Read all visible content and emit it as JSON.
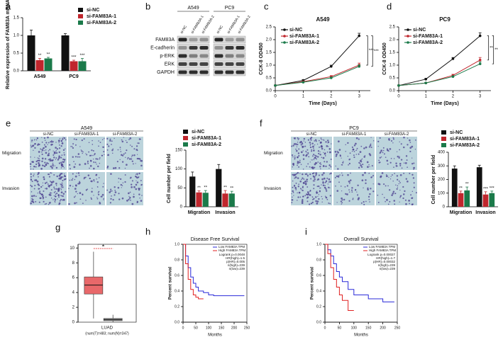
{
  "chart_data": [
    {
      "type": "bar",
      "label": "a",
      "ylabel": "Relative expression of FAM83A mRNA",
      "categories": [
        "A549",
        "PC9"
      ],
      "ylim": [
        0,
        1.5
      ],
      "yticks": [
        {
          "value": 0,
          "label": "0.0"
        },
        {
          "value": 0.5,
          "label": "0.5"
        },
        {
          "value": 1,
          "label": "1.0"
        },
        {
          "value": 1.5,
          "label": "1.5"
        }
      ],
      "series": [
        {
          "name": "si-NC",
          "color": "#111111",
          "values": [
            1.0,
            1.0
          ],
          "errors": [
            0.15,
            0.05
          ],
          "annotations": [
            null,
            null
          ]
        },
        {
          "name": "si-FAM83A-1",
          "color": "#c0262d",
          "values": [
            0.3,
            0.27
          ],
          "errors": [
            0.05,
            0.03
          ],
          "annotations": [
            "**",
            "***"
          ]
        },
        {
          "name": "si-FAM83A-2",
          "color": "#1b7a4a",
          "values": [
            0.35,
            0.27
          ],
          "errors": [
            0.03,
            0.08
          ],
          "annotations": [
            "**",
            "***"
          ]
        }
      ]
    },
    {
      "type": "line",
      "label": "c",
      "title": "A549",
      "xlabel": "Time (Days)",
      "ylabel": "CCK-8 OD450",
      "x": [
        0,
        1,
        2,
        3
      ],
      "xlim": [
        0,
        3.4
      ],
      "xticks": [
        0,
        1,
        2,
        3
      ],
      "ylim": [
        0,
        2.5
      ],
      "yticks": [
        {
          "value": 0,
          "label": "0.0"
        },
        {
          "value": 0.5,
          "label": "0.5"
        },
        {
          "value": 1,
          "label": "1.0"
        },
        {
          "value": 1.5,
          "label": "1.5"
        },
        {
          "value": 2,
          "label": "2.0"
        },
        {
          "value": 2.5,
          "label": "2.5"
        }
      ],
      "series": [
        {
          "name": "si-NC",
          "color": "#111111",
          "values": [
            0.2,
            0.4,
            0.95,
            2.15
          ],
          "errors": [
            0.02,
            0.03,
            0.05,
            0.1
          ]
        },
        {
          "name": "si-FAM83A-1",
          "color": "#c0262d",
          "values": [
            0.2,
            0.35,
            0.55,
            1.0
          ],
          "errors": [
            0.02,
            0.02,
            0.04,
            0.08
          ],
          "annotation": "***"
        },
        {
          "name": "si-FAM83A-2",
          "color": "#1b7a4a",
          "values": [
            0.2,
            0.33,
            0.5,
            0.95
          ],
          "errors": [
            0.02,
            0.02,
            0.03,
            0.06
          ],
          "annotation": "***"
        }
      ]
    },
    {
      "type": "line",
      "label": "d",
      "title": "PC9",
      "xlabel": "Time (Days)",
      "ylabel": "CCK-8 OD450",
      "x": [
        0,
        1,
        2,
        3
      ],
      "xlim": [
        0,
        3.4
      ],
      "xticks": [
        0,
        1,
        2,
        3
      ],
      "ylim": [
        0,
        2.5
      ],
      "yticks": [
        {
          "value": 0,
          "label": "0.0"
        },
        {
          "value": 0.5,
          "label": "0.5"
        },
        {
          "value": 1,
          "label": "1.0"
        },
        {
          "value": 1.5,
          "label": "1.5"
        },
        {
          "value": 2,
          "label": "2.0"
        },
        {
          "value": 2.5,
          "label": "2.5"
        }
      ],
      "series": [
        {
          "name": "si-NC",
          "color": "#111111",
          "values": [
            0.2,
            0.45,
            1.25,
            2.15
          ],
          "errors": [
            0.02,
            0.03,
            0.05,
            0.12
          ]
        },
        {
          "name": "si-FAM83A-1",
          "color": "#c0262d",
          "values": [
            0.2,
            0.3,
            0.6,
            1.2
          ],
          "errors": [
            0.02,
            0.02,
            0.04,
            0.1
          ],
          "annotation": "**"
        },
        {
          "name": "si-FAM83A-2",
          "color": "#1b7a4a",
          "values": [
            0.2,
            0.3,
            0.55,
            1.05
          ],
          "errors": [
            0.02,
            0.02,
            0.03,
            0.08
          ],
          "annotation": "**"
        }
      ]
    },
    {
      "type": "bar",
      "label": "e",
      "ylabel": "Cell number per field",
      "categories": [
        "Migration",
        "Invasion"
      ],
      "ylim": [
        0,
        150
      ],
      "yticks": [
        0,
        50,
        100,
        150
      ],
      "series": [
        {
          "name": "si-NC",
          "color": "#111111",
          "values": [
            80,
            100
          ],
          "errors": [
            12,
            12
          ],
          "annotations": [
            null,
            null
          ]
        },
        {
          "name": "si-FAM83A-1",
          "color": "#c0262d",
          "values": [
            38,
            35
          ],
          "errors": [
            4,
            8
          ],
          "annotations": [
            "**",
            "**"
          ]
        },
        {
          "name": "si-FAM83A-2",
          "color": "#1b7a4a",
          "values": [
            37,
            35
          ],
          "errors": [
            6,
            6
          ],
          "annotations": [
            "**",
            "**"
          ]
        }
      ]
    },
    {
      "type": "bar",
      "label": "f",
      "ylabel": "Cell number per field",
      "categories": [
        "Migration",
        "Invasion"
      ],
      "ylim": [
        0,
        400
      ],
      "yticks": [
        0,
        100,
        200,
        300,
        400
      ],
      "series": [
        {
          "name": "si-NC",
          "color": "#111111",
          "values": [
            280,
            290
          ],
          "errors": [
            20,
            15
          ],
          "annotations": [
            null,
            null
          ]
        },
        {
          "name": "si-FAM83A-1",
          "color": "#c0262d",
          "values": [
            100,
            90
          ],
          "errors": [
            15,
            20
          ],
          "annotations": [
            "**",
            "***"
          ]
        },
        {
          "name": "si-FAM83A-2",
          "color": "#1b7a4a",
          "values": [
            120,
            100
          ],
          "errors": [
            25,
            15
          ],
          "annotations": [
            "**",
            "***"
          ]
        }
      ]
    },
    {
      "type": "box",
      "label": "g",
      "xlabel": "LUAD",
      "subtitle": "(num(T)=483; num(N)=347)",
      "annotation": "*",
      "ylim": [
        0,
        10.5
      ],
      "yticks": [
        0,
        2,
        4,
        6,
        8,
        10
      ],
      "series": [
        {
          "color": "#e8686a",
          "min": 0.5,
          "q1": 3.8,
          "median": 5.0,
          "q3": 6.1,
          "max": 9.5
        },
        {
          "color": "#9a9a9a",
          "min": 0.0,
          "q1": 0.2,
          "median": 0.35,
          "q3": 0.5,
          "max": 1.0
        }
      ]
    },
    {
      "type": "km",
      "label": "h",
      "title": "Disease Free Survival",
      "xlabel": "Months",
      "ylabel": "Percent survival",
      "xlim": [
        0,
        250
      ],
      "xticks": [
        0,
        50,
        100,
        150,
        200,
        250
      ],
      "ylim": [
        0,
        1
      ],
      "yticks": [
        {
          "value": 0,
          "label": "0.0"
        },
        0.2,
        0.4,
        0.6,
        0.8,
        {
          "value": 1,
          "label": "1.0"
        }
      ],
      "annotations": [
        "Logrank p=0.0048",
        "HR(high)=1.5",
        "p(HR)=0.005",
        "n(high)=239",
        "n(low)=239"
      ],
      "series": [
        {
          "name": "Low FAM83A TPM",
          "color": "#2b2bd9",
          "x": [
            0,
            10,
            20,
            30,
            40,
            50,
            60,
            80,
            100,
            120,
            240
          ],
          "values": [
            1,
            0.85,
            0.7,
            0.58,
            0.5,
            0.45,
            0.4,
            0.38,
            0.35,
            0.34,
            0.34
          ]
        },
        {
          "name": "High FAM83A TPM",
          "color": "#e02020",
          "x": [
            0,
            10,
            20,
            30,
            40,
            50,
            60,
            80
          ],
          "values": [
            1,
            0.75,
            0.55,
            0.42,
            0.35,
            0.32,
            0.3,
            0.3
          ]
        }
      ]
    },
    {
      "type": "km",
      "label": "i",
      "title": "Overall Survival",
      "xlabel": "Months",
      "ylabel": "Percent survival",
      "xlim": [
        0,
        250
      ],
      "xticks": [
        0,
        50,
        100,
        150,
        200,
        250
      ],
      "ylim": [
        0,
        1
      ],
      "yticks": [
        {
          "value": 0,
          "label": "0.0"
        },
        0.2,
        0.4,
        0.6,
        0.8,
        {
          "value": 1,
          "label": "1.0"
        }
      ],
      "annotations": [
        "Logrank p=0.00027",
        "HR(high)=1.7",
        "p(HR)=0.00032",
        "n(high)=239",
        "n(low)=239"
      ],
      "series": [
        {
          "name": "Low FAM83A TPM",
          "color": "#2b2bd9",
          "x": [
            0,
            10,
            20,
            30,
            40,
            50,
            60,
            80,
            100,
            150,
            200,
            240
          ],
          "values": [
            1,
            0.93,
            0.85,
            0.75,
            0.65,
            0.58,
            0.52,
            0.42,
            0.35,
            0.3,
            0.26,
            0.26
          ]
        },
        {
          "name": "High FAM83A TPM",
          "color": "#e02020",
          "x": [
            0,
            10,
            20,
            30,
            40,
            50,
            60,
            80,
            100
          ],
          "values": [
            1,
            0.88,
            0.7,
            0.55,
            0.45,
            0.35,
            0.28,
            0.15,
            0.15
          ]
        }
      ]
    }
  ],
  "blot": {
    "label": "b",
    "cell_lines": [
      "A549",
      "PC9"
    ],
    "lanes": [
      "si-NC",
      "si-FAM83A-1",
      "si-FAM83A-2",
      "si-NC",
      "si-FAM83A-1",
      "si-FAM83A-2"
    ],
    "proteins": [
      "FAM83A",
      "E-cadherin",
      "p-ERK",
      "ERK",
      "GAPDH"
    ]
  },
  "micrographs": [
    {
      "title": "A549",
      "columns": [
        "si-NC",
        "si-FAM83A-1",
        "si-FAM83A-2"
      ],
      "rows": [
        "Migration",
        "Invasion"
      ]
    },
    {
      "title": "PC9",
      "columns": [
        "si-NC",
        "si-FAM83A-1",
        "si-FAM83A-2"
      ],
      "rows": [
        "Migration",
        "Invasion"
      ]
    }
  ]
}
